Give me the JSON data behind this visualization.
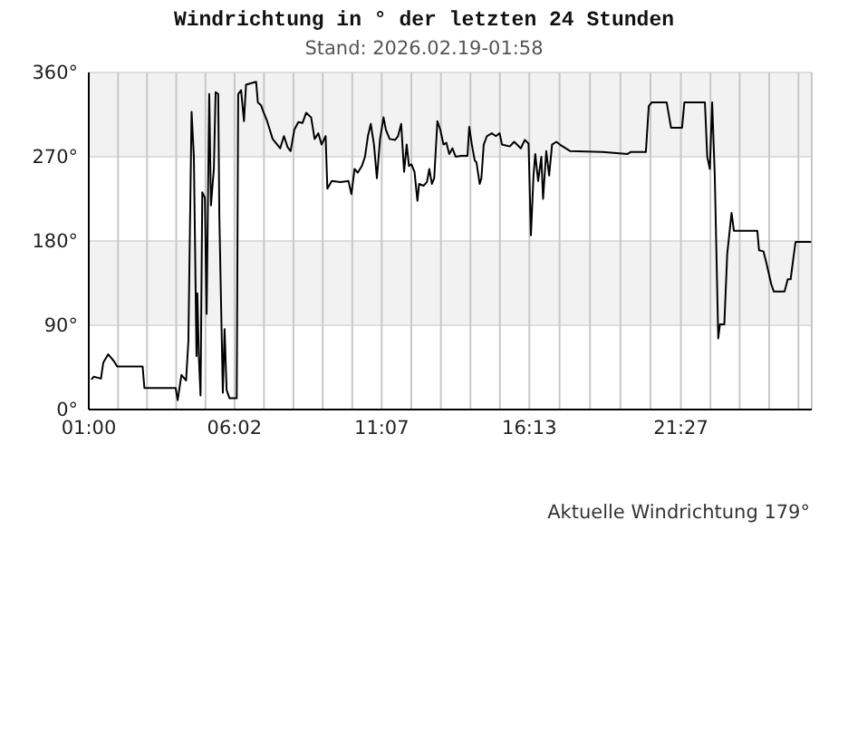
{
  "chart_data": {
    "type": "line",
    "title": "Windrichtung in ° der letzten 24 Stunden",
    "subtitle": "Stand: 2026.02.19-01:58",
    "annotations": [
      "Aktuelle Windrichtung 179°"
    ],
    "x": [
      1.09,
      1.17,
      1.42,
      1.5,
      1.67,
      1.86,
      1.98,
      2.86,
      2.92,
      4.0,
      4.07,
      4.2,
      4.36,
      4.44,
      4.55,
      4.63,
      4.72,
      4.75,
      4.8,
      4.86,
      4.92,
      5.01,
      5.07,
      5.16,
      5.22,
      5.32,
      5.38,
      5.47,
      5.51,
      5.63,
      5.69,
      5.76,
      5.86,
      6.11,
      6.16,
      6.26,
      6.36,
      6.43,
      6.78,
      6.84,
      6.95,
      7.03,
      7.16,
      7.35,
      7.61,
      7.74,
      7.87,
      7.97,
      8.1,
      8.24,
      8.38,
      8.51,
      8.68,
      8.8,
      8.93,
      9.04,
      9.18,
      9.24,
      9.39,
      9.7,
      9.97,
      10.07,
      10.18,
      10.29,
      10.43,
      10.54,
      10.64,
      10.74,
      10.85,
      10.95,
      11.06,
      11.18,
      11.26,
      11.39,
      11.58,
      11.68,
      11.79,
      11.89,
      11.98,
      12.06,
      12.14,
      12.25,
      12.35,
      12.41,
      12.56,
      12.68,
      12.76,
      12.85,
      12.93,
      13.04,
      13.14,
      13.25,
      13.35,
      13.45,
      13.56,
      13.67,
      13.87,
      14.08,
      14.14,
      14.23,
      14.33,
      14.39,
      14.5,
      14.56,
      14.64,
      14.75,
      14.92,
      15.06,
      15.19,
      15.27,
      15.54,
      15.69,
      15.79,
      15.92,
      16.06,
      16.19,
      16.27,
      16.36,
      16.42,
      16.52,
      16.63,
      16.69,
      16.8,
      16.9,
      17.0,
      17.15,
      17.27,
      17.63,
      18.75,
      19.61,
      19.71,
      20.24,
      20.34,
      20.44,
      20.96,
      21.11,
      21.49,
      21.57,
      22.28,
      22.36,
      22.45,
      22.53,
      22.62,
      22.74,
      22.8,
      22.95,
      23.05,
      23.2,
      23.28,
      24.09,
      24.15,
      24.3,
      24.4,
      24.57,
      24.66,
      25.03,
      25.14,
      25.24,
      25.34,
      25.41,
      25.95
    ],
    "values": [
      32,
      35,
      33,
      50,
      59,
      52,
      46,
      46,
      23,
      23,
      10,
      37,
      31,
      73,
      318,
      270,
      57,
      124,
      57,
      15,
      232,
      226,
      102,
      337,
      218,
      257,
      339,
      337,
      205,
      18,
      86,
      21,
      12,
      12,
      337,
      341,
      308,
      347,
      350,
      328,
      325,
      318,
      308,
      289,
      279,
      292,
      280,
      276,
      299,
      307,
      306,
      317,
      312,
      289,
      295,
      283,
      292,
      236,
      244,
      243,
      244,
      230,
      257,
      253,
      260,
      270,
      292,
      305,
      283,
      247,
      289,
      312,
      299,
      289,
      288,
      292,
      305,
      254,
      283,
      260,
      262,
      254,
      223,
      241,
      239,
      243,
      257,
      241,
      247,
      308,
      299,
      283,
      285,
      273,
      279,
      270,
      271,
      271,
      302,
      283,
      266,
      264,
      241,
      247,
      283,
      292,
      295,
      292,
      295,
      283,
      281,
      286,
      283,
      279,
      288,
      284,
      186,
      250,
      273,
      244,
      270,
      225,
      276,
      250,
      283,
      286,
      283,
      276,
      275,
      273,
      275,
      275,
      324,
      328,
      328,
      301,
      301,
      328,
      328,
      270,
      257,
      328,
      250,
      76,
      91,
      91,
      166,
      210,
      191,
      191,
      170,
      169,
      157,
      134,
      126,
      126,
      139,
      139,
      163,
      179,
      179
    ],
    "color": "#000000",
    "xlim": [
      1,
      25.97
    ],
    "xticks": [
      {
        "value": 1,
        "label": "01:00"
      },
      {
        "value": 2.01,
        "label": null
      },
      {
        "value": 3.01,
        "label": null
      },
      {
        "value": 4.02,
        "label": null
      },
      {
        "value": 5.03,
        "label": null
      },
      {
        "value": 6.033,
        "label": "06:02"
      },
      {
        "value": 7.05,
        "label": null
      },
      {
        "value": 8.07,
        "label": null
      },
      {
        "value": 9.08,
        "label": null
      },
      {
        "value": 10.1,
        "label": null
      },
      {
        "value": 11.117,
        "label": "11:07"
      },
      {
        "value": 12.14,
        "label": null
      },
      {
        "value": 13.16,
        "label": null
      },
      {
        "value": 14.18,
        "label": null
      },
      {
        "value": 15.2,
        "label": null
      },
      {
        "value": 16.217,
        "label": "16:13"
      },
      {
        "value": 17.26,
        "label": null
      },
      {
        "value": 18.31,
        "label": null
      },
      {
        "value": 19.36,
        "label": null
      },
      {
        "value": 20.4,
        "label": null
      },
      {
        "value": 21.45,
        "label": "21:27"
      },
      {
        "value": 22.47,
        "label": null
      },
      {
        "value": 23.48,
        "label": null
      },
      {
        "value": 24.5,
        "label": null
      },
      {
        "value": 25.51,
        "label": null
      }
    ],
    "ylim": [
      0,
      360
    ],
    "yticks": [
      {
        "value": 0,
        "label": "0°"
      },
      {
        "value": 90,
        "label": "90°"
      },
      {
        "value": 180,
        "label": "180°"
      },
      {
        "value": 270,
        "label": "270°"
      },
      {
        "value": 360,
        "label": "360°"
      }
    ],
    "grid": true,
    "bands": [
      {
        "axis": "y",
        "from": 90,
        "to": 180,
        "color": "#f2f2f2"
      },
      {
        "axis": "y",
        "from": 270,
        "to": 360,
        "color": "#f2f2f2"
      }
    ]
  }
}
